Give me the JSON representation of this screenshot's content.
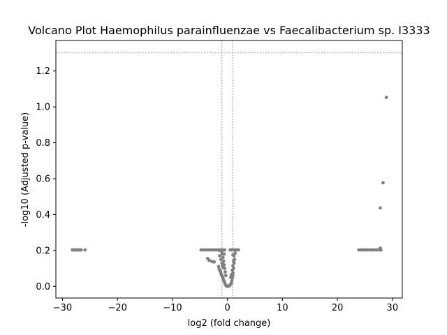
{
  "chart_data": {
    "type": "scatter",
    "title": "Volcano Plot Haemophilus parainfluenzae vs Faecalibacterium sp. I3333",
    "xlabel": "log2 (fold change)",
    "ylabel": "-log10 (Adjusted p-value)",
    "xlim": [
      -31.2,
      31.8
    ],
    "ylim": [
      -0.065,
      1.37
    ],
    "x_ticks": [
      -30,
      -20,
      -10,
      0,
      10,
      20,
      30
    ],
    "x_tick_labels": [
      "−30",
      "−20",
      "−10",
      "0",
      "10",
      "20",
      "30"
    ],
    "y_ticks": [
      0.0,
      0.2,
      0.4,
      0.6,
      0.8,
      1.0,
      1.2
    ],
    "y_tick_labels": [
      "0.0",
      "0.2",
      "0.4",
      "0.6",
      "0.8",
      "1.0",
      "1.2"
    ],
    "threshold_lines": {
      "vertical": [
        -1,
        1
      ],
      "horizontal": [
        1.30103
      ]
    },
    "point_color": "#808080",
    "threshold_line_color": "#808080",
    "grid": false,
    "series": [
      {
        "points": [
          [
            -28.2,
            0.203
          ],
          [
            -28.0,
            0.203
          ],
          [
            -27.8,
            0.203
          ],
          [
            -27.6,
            0.203
          ],
          [
            -27.4,
            0.203
          ],
          [
            -27.2,
            0.203
          ],
          [
            -27.0,
            0.203
          ],
          [
            -26.8,
            0.203
          ],
          [
            -26.6,
            0.203
          ],
          [
            -25.9,
            0.203
          ],
          [
            -4.8,
            0.203
          ],
          [
            -4.4,
            0.203
          ],
          [
            -4.0,
            0.203
          ],
          [
            -3.6,
            0.203
          ],
          [
            -3.2,
            0.203
          ],
          [
            -2.8,
            0.203
          ],
          [
            -2.4,
            0.203
          ],
          [
            -2.0,
            0.203
          ],
          [
            -1.6,
            0.203
          ],
          [
            -1.2,
            0.203
          ],
          [
            -0.8,
            0.203
          ],
          [
            -0.5,
            0.203
          ],
          [
            0.5,
            0.203
          ],
          [
            0.8,
            0.203
          ],
          [
            1.1,
            0.203
          ],
          [
            1.4,
            0.203
          ],
          [
            1.7,
            0.203
          ],
          [
            2.0,
            0.203
          ],
          [
            -1.5,
            0.2
          ],
          [
            -1.0,
            0.19
          ],
          [
            -0.6,
            0.18
          ],
          [
            -3.6,
            0.155
          ],
          [
            -3.3,
            0.145
          ],
          [
            -2.8,
            0.138
          ],
          [
            -2.4,
            0.136
          ],
          [
            -1.4,
            0.17
          ],
          [
            -1.2,
            0.15
          ],
          [
            -1.0,
            0.13
          ],
          [
            -0.9,
            0.115
          ],
          [
            -0.8,
            0.105
          ],
          [
            -0.7,
            0.14
          ],
          [
            -0.6,
            0.12
          ],
          [
            -1.6,
            0.11
          ],
          [
            -1.5,
            0.095
          ],
          [
            -1.3,
            0.085
          ],
          [
            -1.2,
            0.075
          ],
          [
            -1.1,
            0.065
          ],
          [
            -1.0,
            0.06
          ],
          [
            -0.9,
            0.052
          ],
          [
            -0.8,
            0.045
          ],
          [
            -0.7,
            0.035
          ],
          [
            -0.6,
            0.028
          ],
          [
            -0.5,
            0.02
          ],
          [
            -0.4,
            0.012
          ],
          [
            -0.3,
            0.006
          ],
          [
            -0.2,
            0.002
          ],
          [
            -0.1,
            0.001
          ],
          [
            0.0,
            0.0
          ],
          [
            0.1,
            0.001
          ],
          [
            0.2,
            0.002
          ],
          [
            0.3,
            0.003
          ],
          [
            0.4,
            0.005
          ],
          [
            0.5,
            0.008
          ],
          [
            0.6,
            0.012
          ],
          [
            0.7,
            0.02
          ],
          [
            0.8,
            0.03
          ],
          [
            0.9,
            0.045
          ],
          [
            1.0,
            0.06
          ],
          [
            1.0,
            0.075
          ],
          [
            0.9,
            0.09
          ],
          [
            1.1,
            0.1
          ],
          [
            1.0,
            0.115
          ],
          [
            1.2,
            0.13
          ],
          [
            1.1,
            0.14
          ],
          [
            1.3,
            0.15
          ],
          [
            1.2,
            0.17
          ],
          [
            1.4,
            0.185
          ],
          [
            1.0,
            0.175
          ],
          [
            -0.9,
            0.18
          ],
          [
            -0.8,
            0.16
          ],
          [
            -0.5,
            0.1
          ],
          [
            -0.4,
            0.08
          ],
          [
            -0.3,
            0.06
          ],
          [
            0.6,
            0.05
          ],
          [
            0.7,
            0.065
          ],
          [
            23.9,
            0.203
          ],
          [
            24.3,
            0.203
          ],
          [
            24.7,
            0.203
          ],
          [
            25.1,
            0.203
          ],
          [
            25.5,
            0.203
          ],
          [
            25.9,
            0.203
          ],
          [
            26.3,
            0.203
          ],
          [
            26.7,
            0.203
          ],
          [
            27.1,
            0.203
          ],
          [
            27.5,
            0.203
          ],
          [
            27.9,
            0.203
          ],
          [
            27.8,
            0.213
          ],
          [
            27.8,
            0.437
          ],
          [
            28.3,
            0.577
          ],
          [
            28.9,
            1.053
          ]
        ]
      }
    ]
  }
}
